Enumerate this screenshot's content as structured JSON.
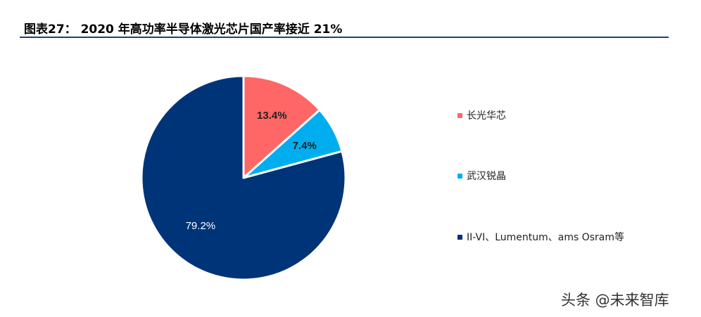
{
  "title": "图表27： 2020 年高功率半导体激光芯片国产率接近 21%",
  "watermark": "头条 @未来智库",
  "chart_data": {
    "type": "pie",
    "slices": [
      {
        "name": "长光华芯",
        "value": 13.4,
        "label": "13.4%",
        "color": "#ff6666"
      },
      {
        "name": "武汉锐晶",
        "value": 7.4,
        "label": "7.4%",
        "color": "#00aeef"
      },
      {
        "name": "II-VI、Lumentum、ams Osram等",
        "value": 79.2,
        "label": "79.2%",
        "color": "#003478"
      }
    ],
    "legend_position": "right"
  }
}
